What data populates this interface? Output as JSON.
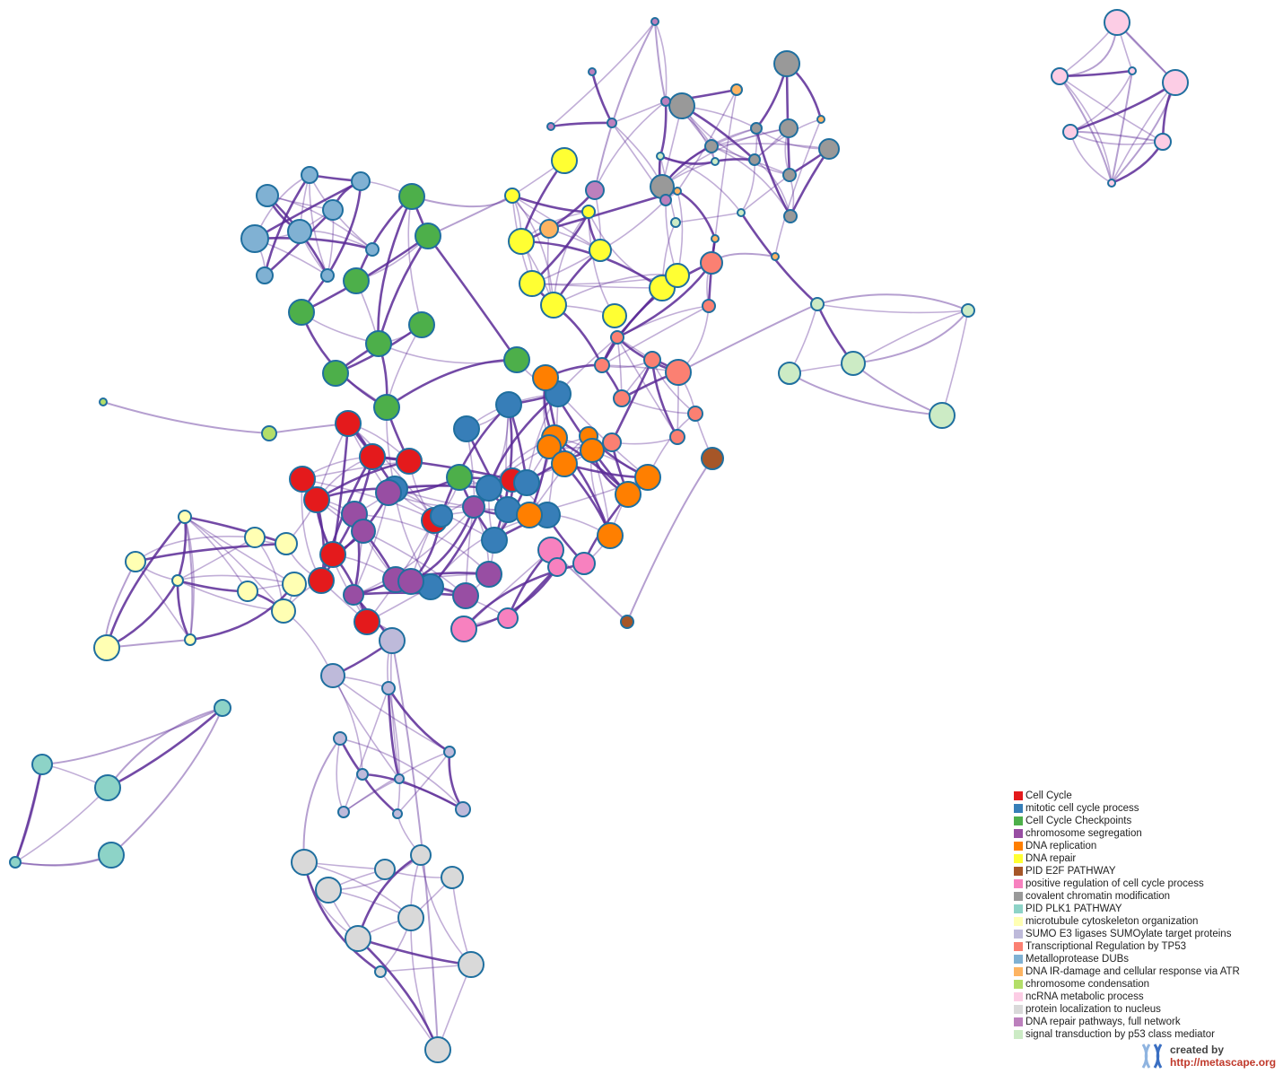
{
  "legend": [
    {
      "label": "Cell Cycle",
      "color": "#e41a1c"
    },
    {
      "label": "mitotic cell cycle process",
      "color": "#377eb8"
    },
    {
      "label": "Cell Cycle Checkpoints",
      "color": "#4daf4a"
    },
    {
      "label": "chromosome segregation",
      "color": "#984ea3"
    },
    {
      "label": "DNA replication",
      "color": "#ff7f00"
    },
    {
      "label": "DNA repair",
      "color": "#ffff33"
    },
    {
      "label": "PID E2F PATHWAY",
      "color": "#a65628"
    },
    {
      "label": "positive regulation of cell cycle process",
      "color": "#f781bf"
    },
    {
      "label": "covalent chromatin modification",
      "color": "#999999"
    },
    {
      "label": "PID PLK1 PATHWAY",
      "color": "#8dd3c7"
    },
    {
      "label": "microtubule cytoskeleton organization",
      "color": "#ffffb3"
    },
    {
      "label": "SUMO E3 ligases SUMOylate target proteins",
      "color": "#bebada"
    },
    {
      "label": "Transcriptional Regulation by TP53",
      "color": "#fb8072"
    },
    {
      "label": "Metalloprotease DUBs",
      "color": "#80b1d3"
    },
    {
      "label": "DNA IR-damage and cellular response via ATR",
      "color": "#fdb462"
    },
    {
      "label": "chromosome condensation",
      "color": "#b3de69"
    },
    {
      "label": "ncRNA metabolic process",
      "color": "#fccde5"
    },
    {
      "label": "protein localization to nucleus",
      "color": "#d9d9d9"
    },
    {
      "label": "DNA repair pathways, full network",
      "color": "#bc80bd"
    },
    {
      "label": "signal transduction by p53 class mediator",
      "color": "#ccebc5"
    }
  ],
  "node_stroke_color": "#1f6f9f",
  "edge_color": "#5b2a96",
  "credit": {
    "created_by": "created by",
    "url": "http://metascape.org",
    "logo_icon": "metascape-logo-icon"
  }
}
